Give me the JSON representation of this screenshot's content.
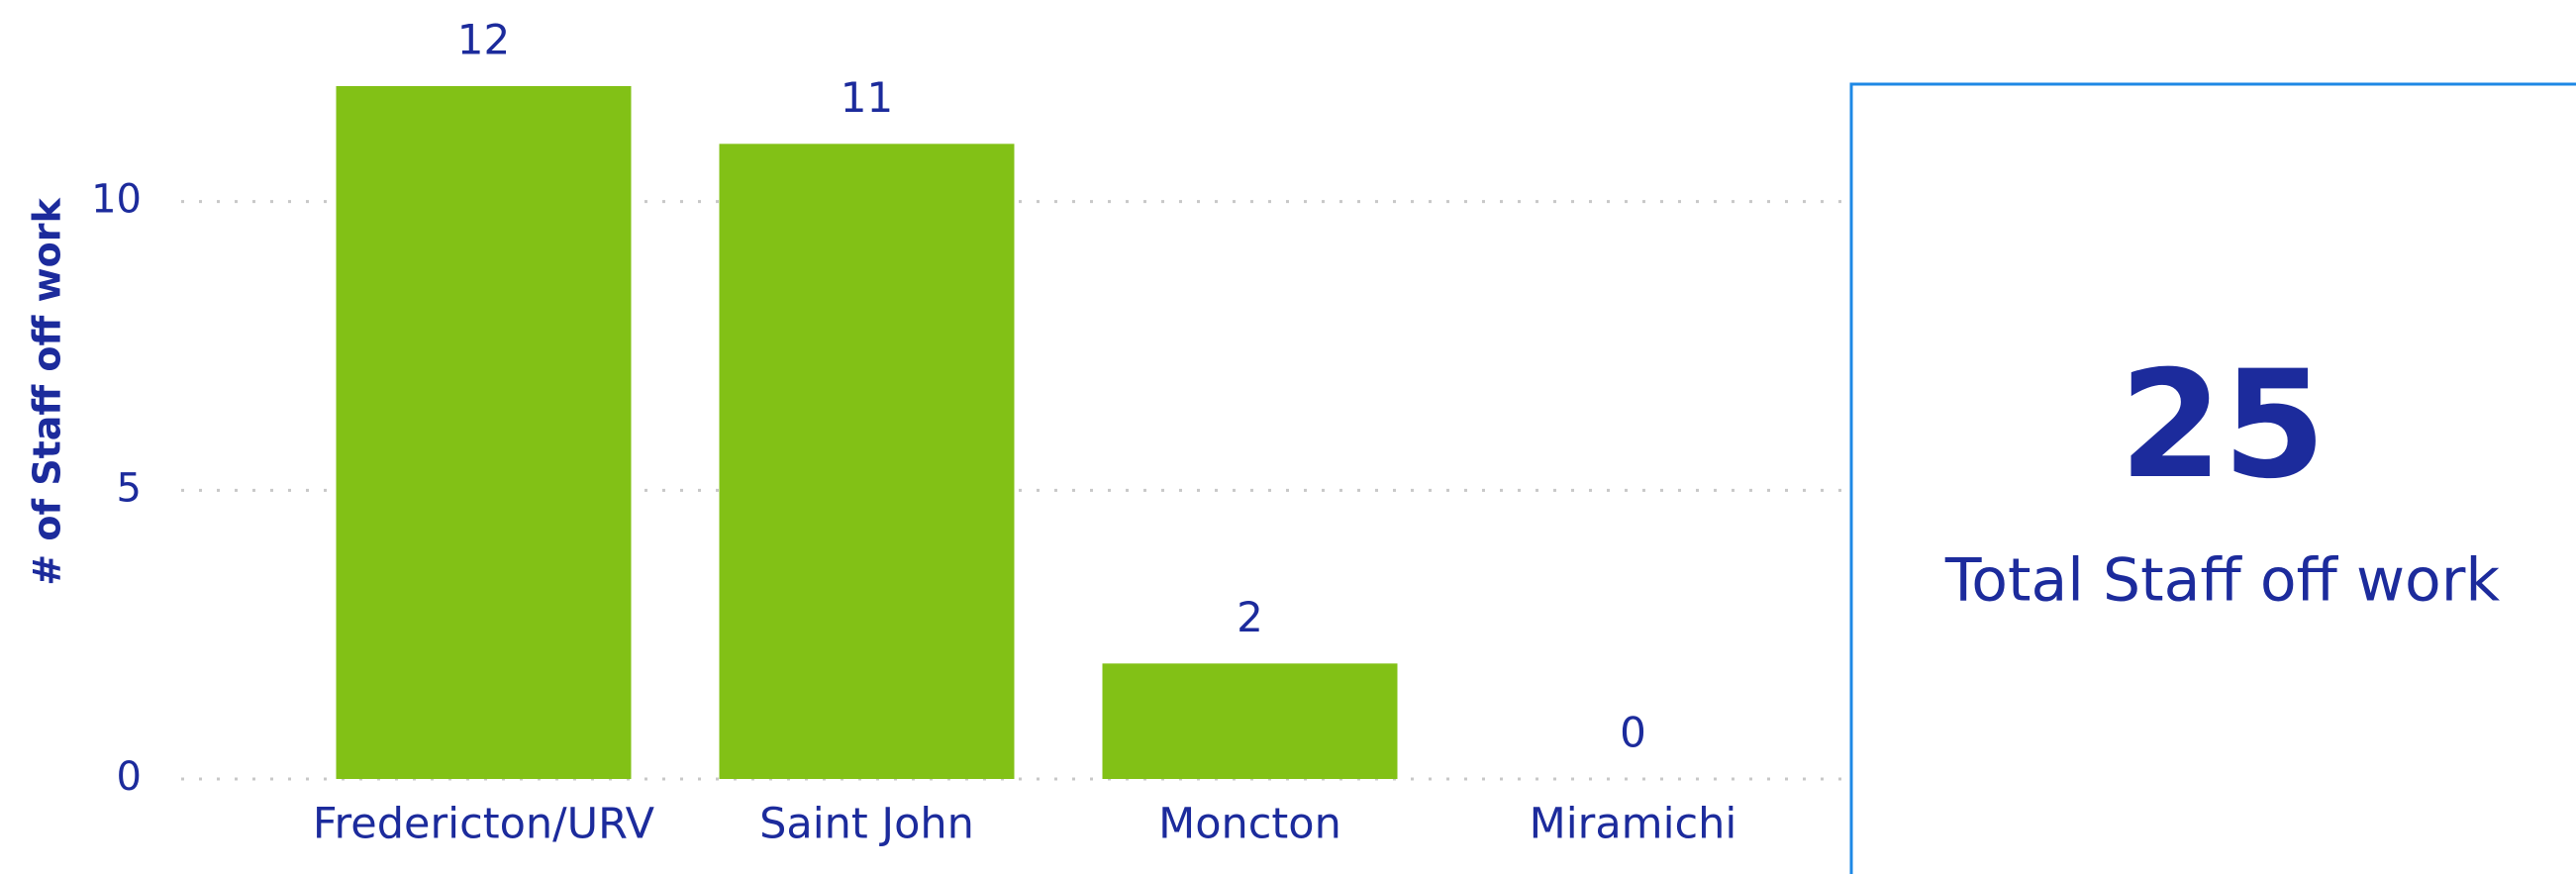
{
  "chart_data": {
    "type": "bar",
    "y_label": "# of Staff off work",
    "categories": [
      "Fredericton/URV",
      "Saint John",
      "Moncton",
      "Miramichi"
    ],
    "values": [
      12,
      11,
      2,
      0
    ],
    "color": "#82c116",
    "ylim": [
      0,
      12
    ],
    "yticks": [
      0,
      5,
      10
    ],
    "grid": true
  },
  "card": {
    "value": 25,
    "label": "Total Staff off work"
  }
}
